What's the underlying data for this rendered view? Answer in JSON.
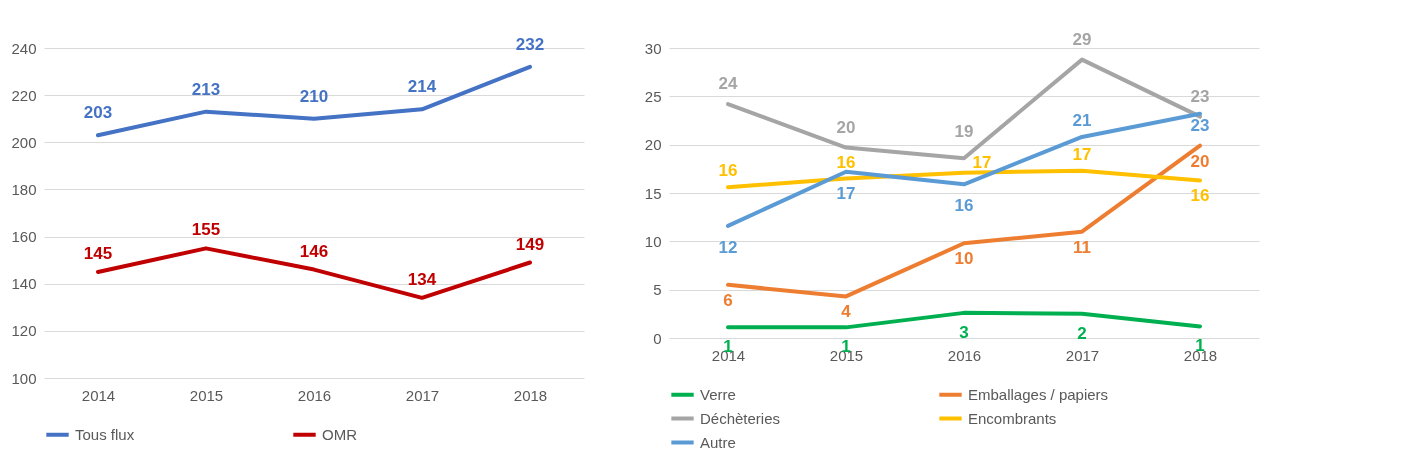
{
  "chart_data": [
    {
      "type": "line",
      "categories": [
        "2014",
        "2015",
        "2016",
        "2017",
        "2018"
      ],
      "ylim": [
        100,
        240
      ],
      "yticks": [
        100,
        120,
        140,
        160,
        180,
        200,
        220,
        240
      ],
      "grid": "y",
      "legend": "bottom",
      "data_labels": true,
      "series": [
        {
          "name": "Tous flux",
          "color": "#4472c4",
          "values": [
            203,
            213,
            210,
            214,
            232
          ]
        },
        {
          "name": "OMR",
          "color": "#c00000",
          "values": [
            145,
            155,
            146,
            134,
            149
          ]
        }
      ]
    },
    {
      "type": "line",
      "categories": [
        "2014",
        "2015",
        "2016",
        "2017",
        "2018"
      ],
      "ylim": [
        0,
        30
      ],
      "yticks": [
        0,
        5,
        10,
        15,
        20,
        25,
        30
      ],
      "grid": "y",
      "legend": "bottom",
      "series": [
        {
          "name": "Verre",
          "color": "#00b050",
          "values": [
            1.1,
            1.1,
            2.6,
            2.5,
            1.2
          ],
          "value_labels": [
            "1",
            "1",
            "3",
            "2",
            "1"
          ]
        },
        {
          "name": "Emballages / papiers",
          "color": "#ed7d31",
          "values": [
            5.5,
            4.3,
            9.8,
            11,
            19.9
          ],
          "value_labels": [
            "6",
            "4",
            "10",
            "11",
            "20"
          ]
        },
        {
          "name": "Déchèteries",
          "color": "#a5a5a5",
          "values": [
            24.2,
            19.7,
            18.6,
            28.8,
            22.9
          ],
          "value_labels": [
            "24",
            "20",
            "19",
            "29",
            "23"
          ]
        },
        {
          "name": "Encombrants",
          "color": "#ffc000",
          "values": [
            15.6,
            16.5,
            17.1,
            17.3,
            16.3
          ],
          "value_labels": [
            "16",
            "16",
            "17",
            "17",
            "16"
          ]
        },
        {
          "name": "Autre",
          "color": "#5b9bd5",
          "values": [
            11.6,
            17.2,
            15.9,
            20.8,
            23.2
          ],
          "value_labels": [
            "12",
            "17",
            "16",
            "21",
            "23"
          ]
        }
      ]
    }
  ]
}
